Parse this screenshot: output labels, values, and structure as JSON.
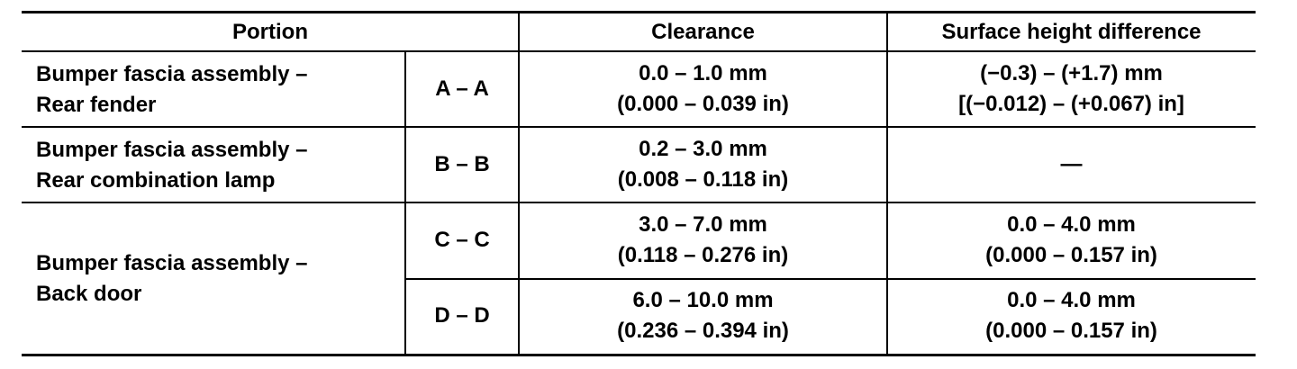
{
  "table": {
    "header": [
      "Portion",
      "Clearance",
      "Surface height difference"
    ],
    "groups": [
      {
        "portion": [
          "Bumper fascia assembly –",
          "Rear fender"
        ],
        "sections": [
          {
            "section": "A – A",
            "clearance": [
              "0.0 – 1.0 mm",
              "(0.000 – 0.039 in)"
            ],
            "surface": [
              "(−0.3) – (+1.7) mm",
              "[(−0.012) – (+0.067) in]"
            ]
          }
        ]
      },
      {
        "portion": [
          "Bumper fascia assembly –",
          "Rear combination lamp"
        ],
        "sections": [
          {
            "section": "B – B",
            "clearance": [
              "0.2 – 3.0 mm",
              "(0.008 – 0.118 in)"
            ],
            "surface": [
              "—"
            ]
          }
        ]
      },
      {
        "portion": [
          "Bumper fascia assembly –",
          "Back door"
        ],
        "sections": [
          {
            "section": "C – C",
            "clearance": [
              "3.0 – 7.0 mm",
              "(0.118 – 0.276 in)"
            ],
            "surface": [
              "0.0 – 4.0 mm",
              "(0.000 – 0.157 in)"
            ]
          },
          {
            "section": "D – D",
            "clearance": [
              "6.0 – 10.0 mm",
              "(0.236 – 0.394 in)"
            ],
            "surface": [
              "0.0 – 4.0 mm",
              "(0.000 – 0.157 in)"
            ]
          }
        ]
      }
    ]
  }
}
